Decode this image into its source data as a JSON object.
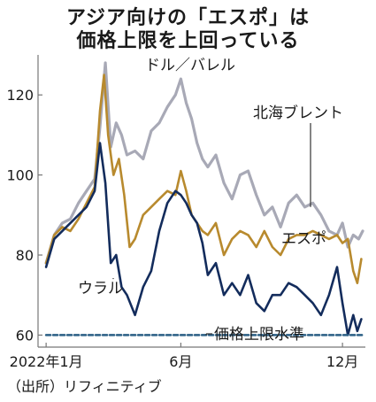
{
  "title_line1": "アジア向けの「エスポ」は",
  "title_line2": "価格上限を上回っている",
  "source": "（出所）リフィニティブ",
  "colors": {
    "brent": "#a8a9b6",
    "espo": "#b88a2e",
    "urals": "#132c5c",
    "cap": "#2b5f85",
    "axis": "#777777"
  },
  "chart_data": {
    "type": "line",
    "unit_label": "ドル／バレル",
    "x_tick_labels": [
      "2022年1月",
      "6月",
      "12月"
    ],
    "x_tick_months": [
      1,
      6,
      12
    ],
    "y_ticks": [
      60,
      80,
      100,
      120
    ],
    "ylim": [
      57,
      130
    ],
    "xlim": [
      0.7,
      12.85
    ],
    "grid": false,
    "annotations": {
      "brent": "北海ブレント",
      "espo": "エスポ",
      "urals": "ウラル",
      "cap": "価格上限水準"
    },
    "series": [
      {
        "name": "北海ブレント",
        "key": "brent",
        "x": [
          1.0,
          1.3,
          1.6,
          1.9,
          2.2,
          2.5,
          2.8,
          3.0,
          3.2,
          3.4,
          3.6,
          3.8,
          4.0,
          4.3,
          4.6,
          4.9,
          5.2,
          5.5,
          5.8,
          6.0,
          6.2,
          6.4,
          6.6,
          6.8,
          7.0,
          7.3,
          7.6,
          7.9,
          8.2,
          8.5,
          8.8,
          9.1,
          9.4,
          9.7,
          10.0,
          10.3,
          10.6,
          10.9,
          11.2,
          11.5,
          11.8,
          12.0,
          12.2,
          12.4,
          12.6,
          12.75
        ],
        "values": [
          78,
          85,
          88,
          89,
          93,
          96,
          99,
          112,
          128,
          107,
          113,
          110,
          105,
          106,
          104,
          111,
          113,
          117,
          120,
          124,
          118,
          114,
          108,
          104,
          102,
          105,
          98,
          94,
          100,
          101,
          95,
          90,
          92,
          87,
          93,
          95,
          92,
          93,
          90,
          86,
          85,
          88,
          82,
          85,
          84,
          86
        ]
      },
      {
        "name": "エスポ",
        "key": "espo",
        "x": [
          1.0,
          1.3,
          1.6,
          1.9,
          2.2,
          2.5,
          2.8,
          3.0,
          3.15,
          3.3,
          3.5,
          3.7,
          3.9,
          4.1,
          4.3,
          4.6,
          4.9,
          5.2,
          5.5,
          5.8,
          6.0,
          6.2,
          6.4,
          6.6,
          6.8,
          7.0,
          7.3,
          7.6,
          7.9,
          8.2,
          8.5,
          8.8,
          9.1,
          9.4,
          9.7,
          10.0,
          10.3,
          10.6,
          10.9,
          11.2,
          11.5,
          11.8,
          12.0,
          12.2,
          12.4,
          12.55,
          12.7
        ],
        "values": [
          78,
          85,
          87,
          86,
          89,
          93,
          97,
          116,
          125,
          110,
          100,
          104,
          95,
          82,
          84,
          90,
          92,
          94,
          96,
          95,
          101,
          96,
          90,
          88,
          86,
          85,
          88,
          80,
          84,
          86,
          85,
          82,
          86,
          82,
          80,
          84,
          85,
          85,
          86,
          85,
          84,
          85,
          83,
          84,
          76,
          73,
          79
        ]
      },
      {
        "name": "ウラル",
        "key": "urals",
        "x": [
          1.0,
          1.3,
          1.6,
          1.9,
          2.2,
          2.5,
          2.8,
          3.0,
          3.2,
          3.4,
          3.6,
          3.8,
          4.0,
          4.3,
          4.6,
          4.9,
          5.2,
          5.5,
          5.8,
          6.0,
          6.2,
          6.4,
          6.6,
          6.8,
          7.0,
          7.3,
          7.6,
          7.9,
          8.2,
          8.5,
          8.8,
          9.1,
          9.4,
          9.7,
          10.0,
          10.3,
          10.6,
          10.9,
          11.2,
          11.5,
          11.8,
          12.0,
          12.2,
          12.4,
          12.55,
          12.7
        ],
        "values": [
          77,
          84,
          86,
          88,
          90,
          92,
          96,
          108,
          98,
          78,
          80,
          72,
          70,
          65,
          72,
          76,
          86,
          93,
          96,
          95,
          93,
          90,
          88,
          83,
          75,
          78,
          70,
          73,
          70,
          75,
          68,
          66,
          70,
          70,
          73,
          72,
          70,
          68,
          65,
          70,
          77,
          68,
          60,
          65,
          61,
          64
        ]
      },
      {
        "name": "価格上限水準",
        "key": "cap",
        "x": [
          1.0,
          12.75
        ],
        "values": [
          60,
          60
        ]
      }
    ]
  }
}
